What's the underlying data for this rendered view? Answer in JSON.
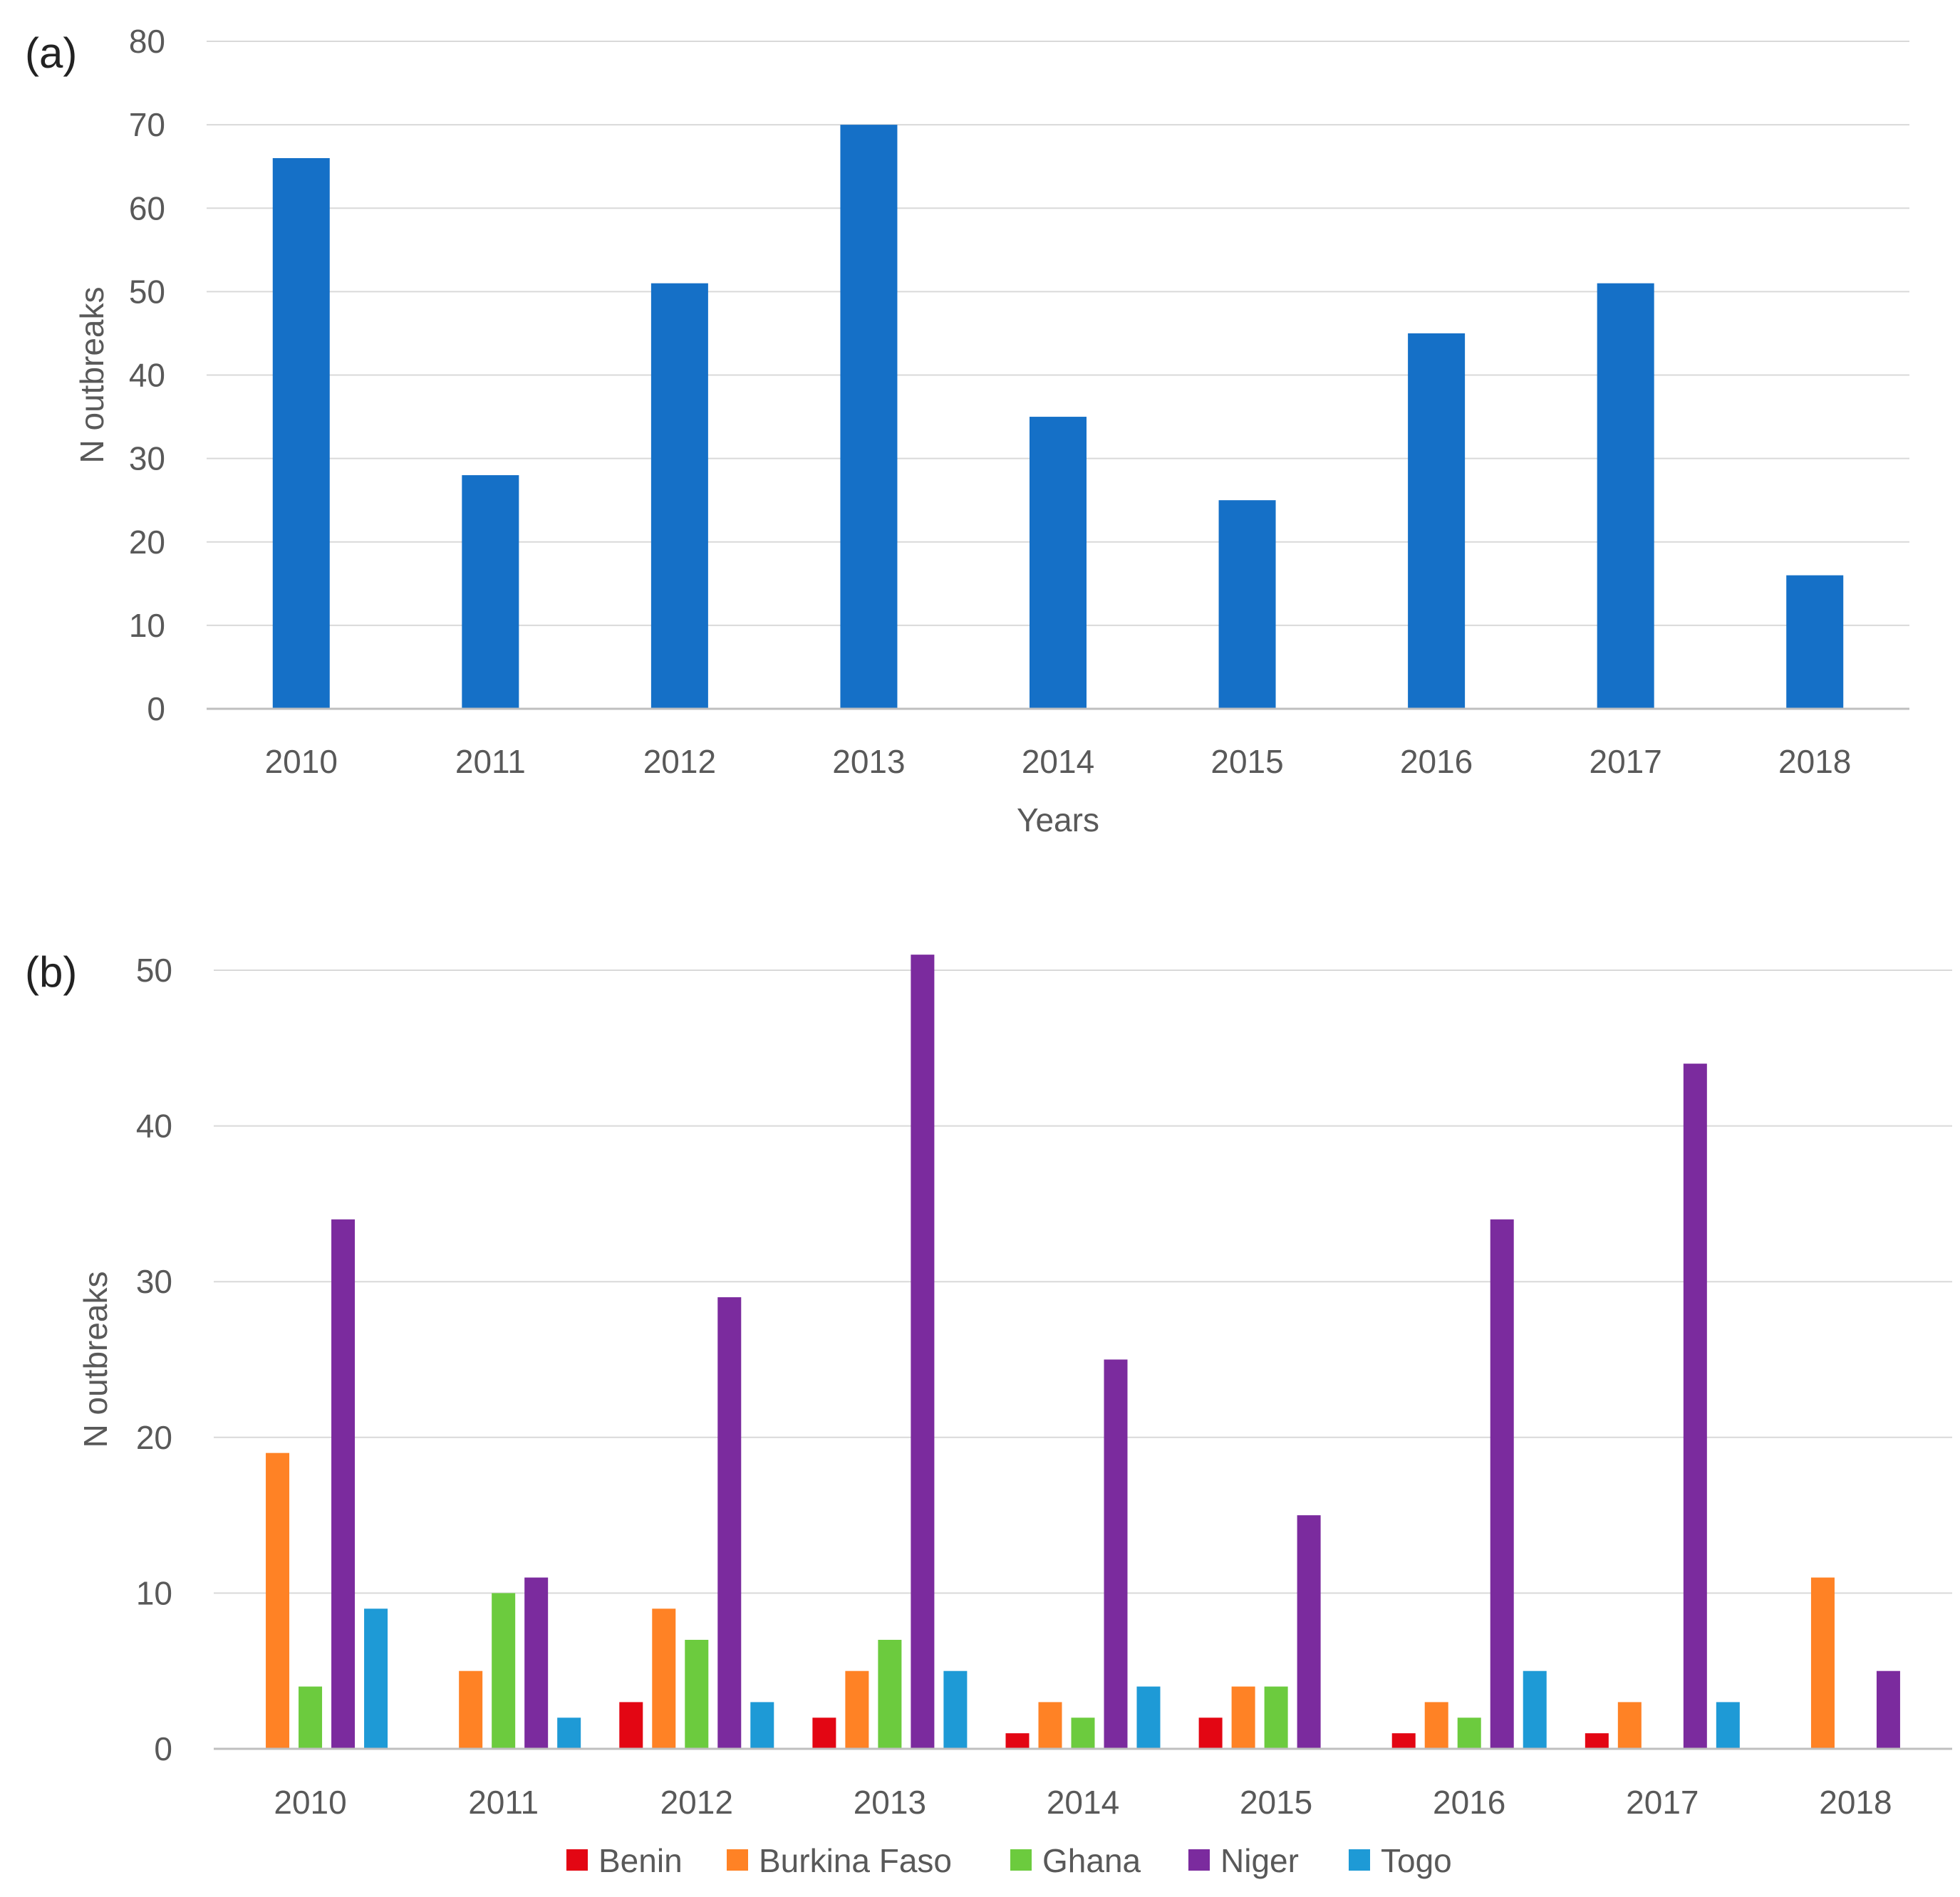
{
  "chart_data": [
    {
      "panel_label": "(a)",
      "type": "bar",
      "categories": [
        "2010",
        "2011",
        "2012",
        "2013",
        "2014",
        "2015",
        "2016",
        "2017",
        "2018"
      ],
      "series": [
        {
          "name": "N outbreaks",
          "values": [
            66,
            28,
            51,
            70,
            35,
            25,
            45,
            51,
            16
          ]
        }
      ],
      "ylim": [
        0,
        80
      ],
      "yticks": [
        "0",
        "10",
        "20",
        "30",
        "40",
        "50",
        "60",
        "70",
        "80"
      ],
      "xlabel": "Years",
      "ylabel": "N outbreaks",
      "grid": true,
      "legend": "none",
      "colors": [
        "#1570C7"
      ]
    },
    {
      "panel_label": "(b)",
      "type": "bar",
      "categories": [
        "2010",
        "2011",
        "2012",
        "2013",
        "2014",
        "2015",
        "2016",
        "2017",
        "2018"
      ],
      "series": [
        {
          "name": "Benin",
          "values": [
            0,
            0,
            3,
            2,
            1,
            2,
            1,
            1,
            0
          ]
        },
        {
          "name": "Burkina Faso",
          "values": [
            19,
            5,
            9,
            5,
            3,
            4,
            3,
            3,
            11
          ]
        },
        {
          "name": "Ghana",
          "values": [
            4,
            10,
            7,
            7,
            2,
            4,
            2,
            0,
            0
          ]
        },
        {
          "name": "Niger",
          "values": [
            34,
            11,
            29,
            51,
            25,
            15,
            34,
            44,
            5
          ]
        },
        {
          "name": "Togo",
          "values": [
            9,
            2,
            3,
            5,
            4,
            0,
            5,
            3,
            0
          ]
        }
      ],
      "ylim": [
        0,
        50
      ],
      "yticks": [
        "0",
        "10",
        "20",
        "30",
        "40",
        "50"
      ],
      "xlabel": "",
      "ylabel": "N outbreaks",
      "grid": true,
      "legend": "bottom-center",
      "colors": [
        "#E30613",
        "#FF8225",
        "#6CCB3E",
        "#7B2B9E",
        "#1E9AD6"
      ]
    }
  ]
}
